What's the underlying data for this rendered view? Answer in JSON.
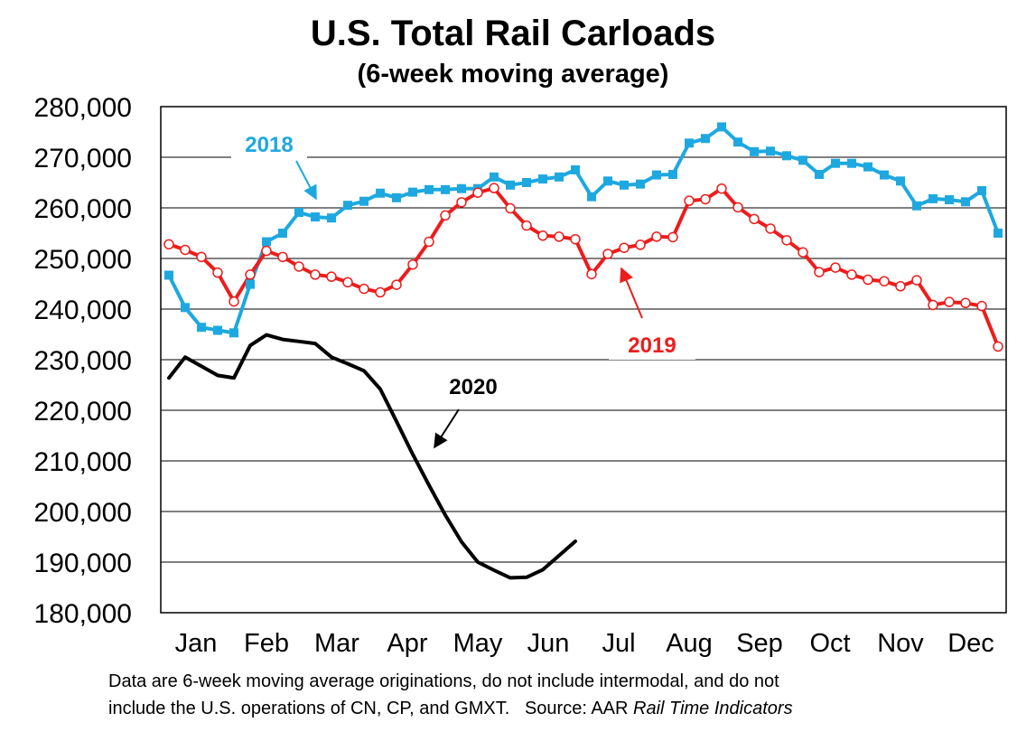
{
  "chart_data": {
    "type": "line",
    "title": "U.S. Total Rail Carloads",
    "subtitle": "(6-week moving average)",
    "xlabel": "",
    "ylabel": "",
    "ylim": [
      180000,
      280000
    ],
    "xlim": [
      0,
      52
    ],
    "grid": true,
    "yticks": [
      180000,
      190000,
      200000,
      210000,
      220000,
      230000,
      240000,
      250000,
      260000,
      270000,
      280000
    ],
    "ytick_labels": [
      "180,000",
      "190,000",
      "200,000",
      "210,000",
      "220,000",
      "230,000",
      "240,000",
      "250,000",
      "260,000",
      "270,000",
      "280,000"
    ],
    "months": [
      "Jan",
      "Feb",
      "Mar",
      "Apr",
      "May",
      "Jun",
      "Jul",
      "Aug",
      "Sep",
      "Oct",
      "Nov",
      "Dec"
    ],
    "series": [
      {
        "name": "2018",
        "color": "#1ea8e0",
        "marker": "square",
        "values": [
          246700,
          240300,
          236400,
          235800,
          235300,
          244900,
          253300,
          255000,
          259100,
          258200,
          258000,
          260500,
          261300,
          262900,
          262000,
          263100,
          263600,
          263600,
          263800,
          263800,
          266100,
          264500,
          265000,
          265700,
          266100,
          267500,
          262200,
          265300,
          264500,
          264700,
          266500,
          266600,
          272800,
          273700,
          276000,
          273000,
          271100,
          271200,
          270300,
          269400,
          266600,
          268800,
          268800,
          268100,
          266500,
          265300,
          260400,
          261800,
          261600,
          261200,
          263400,
          255000
        ]
      },
      {
        "name": "2019",
        "color": "#ee1c1c",
        "marker": "circle",
        "values": [
          252800,
          251700,
          250300,
          247200,
          241500,
          246800,
          251500,
          250300,
          248400,
          246800,
          246400,
          245300,
          244000,
          243300,
          244800,
          248800,
          253300,
          258500,
          261100,
          263000,
          263900,
          259900,
          256500,
          254500,
          254300,
          253800,
          246900,
          250900,
          252100,
          252700,
          254300,
          254200,
          261400,
          261700,
          263800,
          260100,
          257800,
          255900,
          253600,
          251200,
          247300,
          248200,
          246800,
          245800,
          245500,
          244500,
          245700,
          240800,
          241400,
          241200,
          240600,
          232600
        ]
      },
      {
        "name": "2020",
        "color": "#000000",
        "marker": "none",
        "values": [
          226400,
          230500,
          228700,
          226900,
          226400,
          232800,
          234900,
          234000,
          233600,
          233200,
          230500,
          229200,
          227800,
          224200,
          217800,
          211300,
          205200,
          199300,
          194000,
          190000,
          188400,
          186900,
          187000,
          188500,
          191300,
          194100
        ]
      }
    ],
    "annotations": [
      {
        "label": "2018",
        "series": "2018",
        "arrow": true
      },
      {
        "label": "2019",
        "series": "2019",
        "arrow": true
      },
      {
        "label": "2020",
        "series": "2020",
        "arrow": true
      }
    ]
  },
  "footnote": {
    "line1": "Data are 6-week moving average originations, do not include intermodal, and do not",
    "line2_prefix": "include the U.S. operations of CN, CP, and GMXT.   Source: AAR ",
    "line2_italic": "Rail Time Indicators"
  }
}
